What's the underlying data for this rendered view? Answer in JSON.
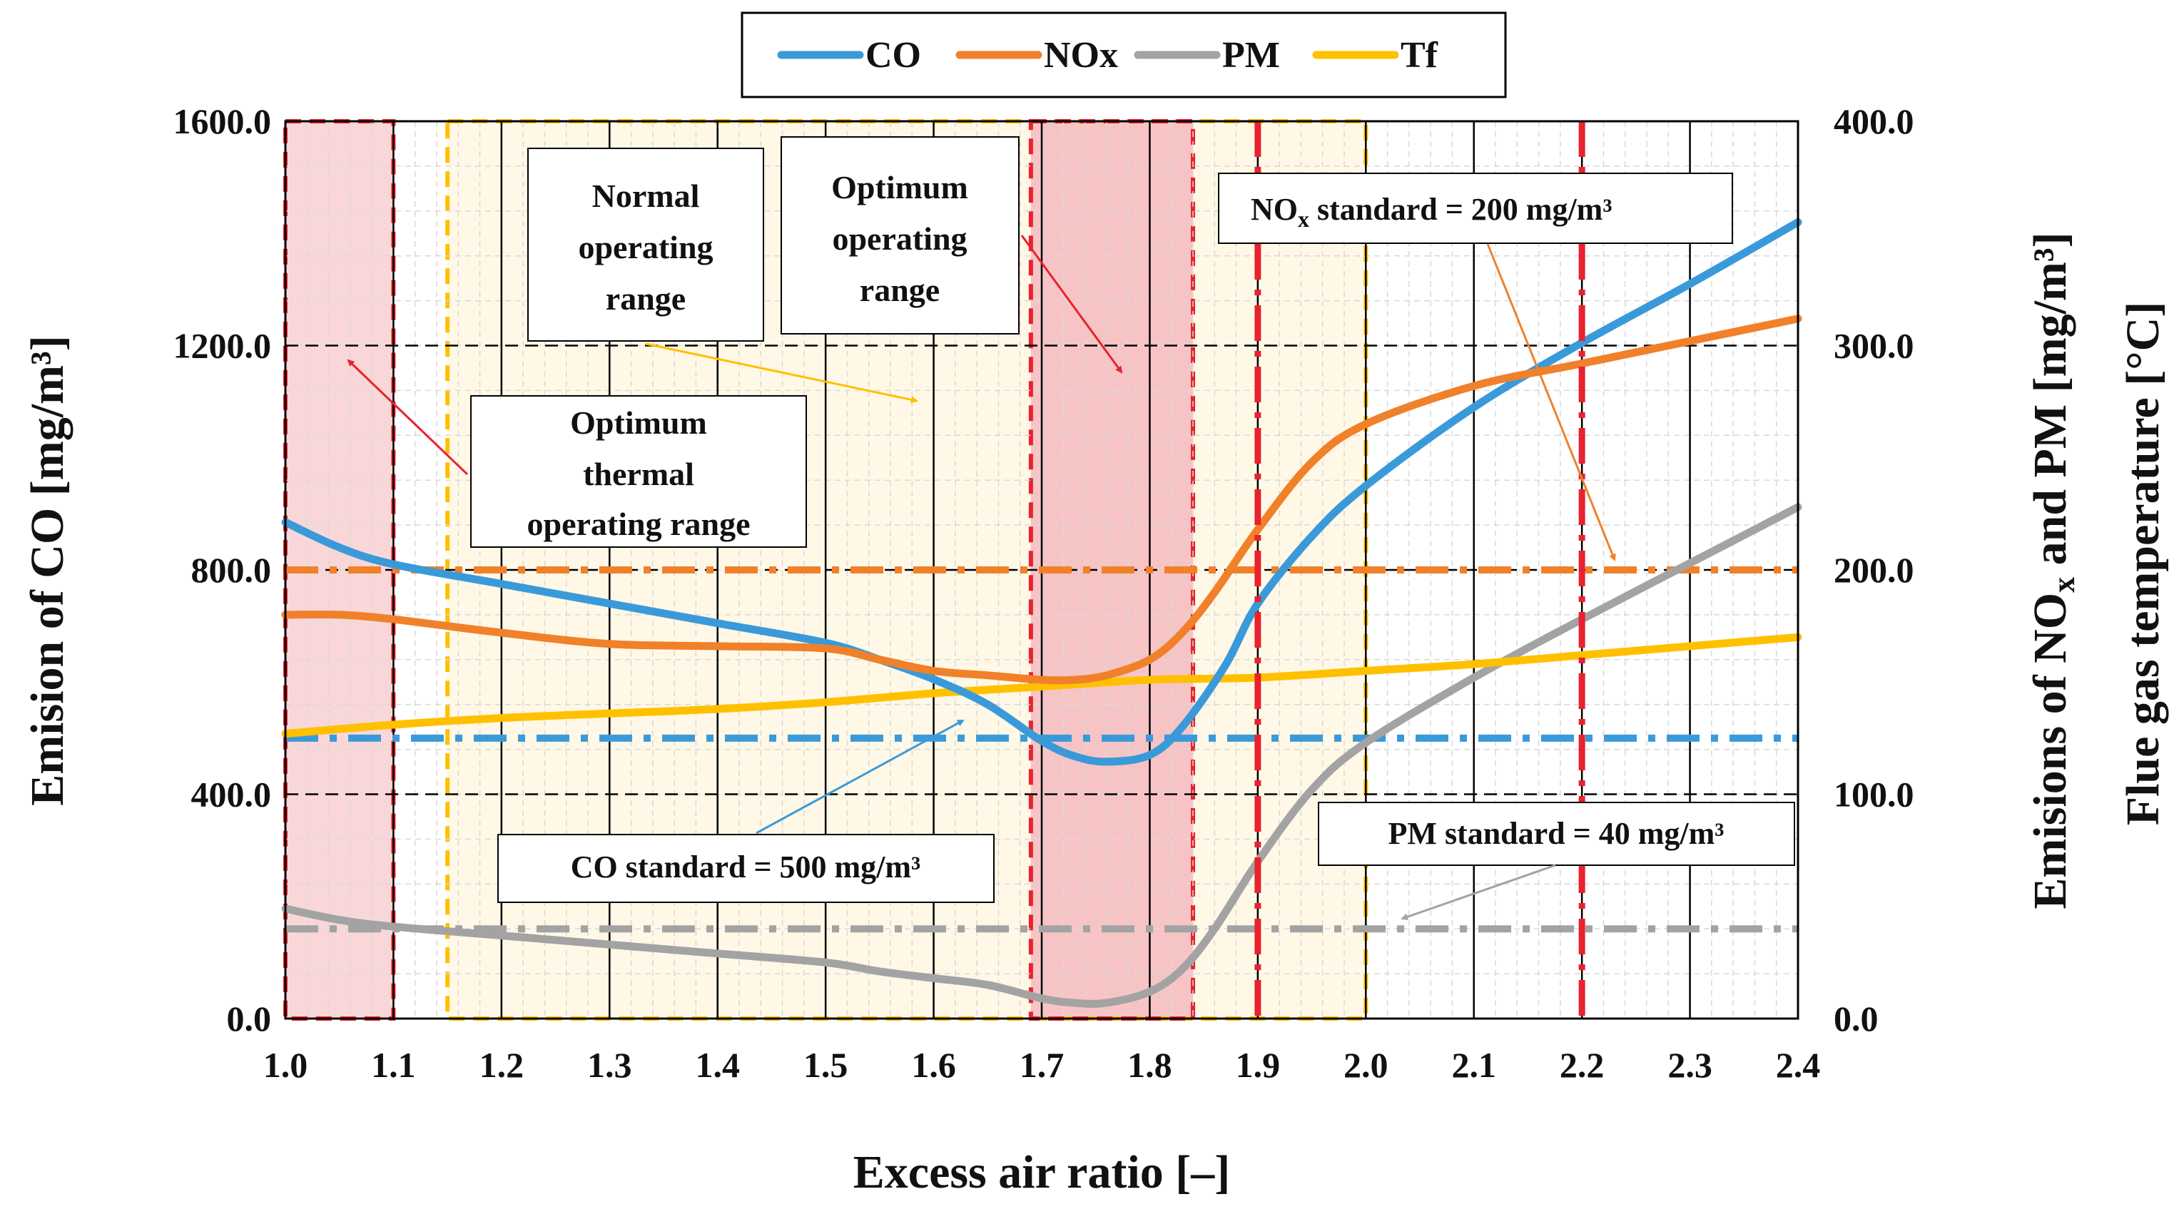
{
  "chart_data": {
    "type": "line",
    "x_axis": {
      "title": "Excess air ratio [–]",
      "min": 1.0,
      "max": 2.4,
      "ticks": [
        1.0,
        1.1,
        1.2,
        1.3,
        1.4,
        1.5,
        1.6,
        1.7,
        1.8,
        1.9,
        2.0,
        2.1,
        2.2,
        2.3,
        2.4
      ],
      "tick_labels": [
        "1.0",
        "1.1",
        "1.2",
        "1.3",
        "1.4",
        "1.5",
        "1.6",
        "1.7",
        "1.8",
        "1.9",
        "2.0",
        "2.1",
        "2.2",
        "2.3",
        "2.4"
      ]
    },
    "y_left": {
      "title": "Emision of CO [mg/m³]",
      "min": 0,
      "max": 1600,
      "ticks": [
        0,
        400,
        800,
        1200,
        1600
      ],
      "tick_labels": [
        "0.0",
        "400.0",
        "800.0",
        "1200.0",
        "1600.0"
      ]
    },
    "y_right": {
      "title_line1": "Emisions of NOₓ and PM [mg/m³]",
      "title_line2": "Flue gas temperature [°C]",
      "min": 0,
      "max": 400,
      "ticks": [
        0,
        100,
        200,
        300,
        400
      ],
      "tick_labels": [
        "0.0",
        "100.0",
        "200.0",
        "300.0",
        "400.0"
      ]
    },
    "series": [
      {
        "name": "CO",
        "axis": "left",
        "color": "#3a9ad9",
        "x": [
          1.0,
          1.05,
          1.1,
          1.2,
          1.3,
          1.4,
          1.5,
          1.55,
          1.6,
          1.65,
          1.7,
          1.73,
          1.76,
          1.8,
          1.83,
          1.87,
          1.9,
          1.95,
          2.0,
          2.1,
          2.2,
          2.3,
          2.4
        ],
        "y": [
          885,
          840,
          810,
          775,
          740,
          705,
          670,
          640,
          605,
          560,
          495,
          468,
          458,
          470,
          520,
          630,
          740,
          860,
          950,
          1090,
          1205,
          1310,
          1420
        ]
      },
      {
        "name": "NOx",
        "axis": "right",
        "color": "#f0812a",
        "x": [
          1.0,
          1.05,
          1.1,
          1.2,
          1.3,
          1.4,
          1.5,
          1.55,
          1.6,
          1.65,
          1.7,
          1.73,
          1.76,
          1.8,
          1.83,
          1.86,
          1.9,
          1.95,
          2.0,
          2.1,
          2.2,
          2.3,
          2.4
        ],
        "y": [
          180,
          180,
          178,
          172,
          167,
          166,
          165,
          160,
          155,
          153,
          151,
          151,
          153,
          160,
          172,
          190,
          218,
          248,
          265,
          282,
          292,
          302,
          312
        ]
      },
      {
        "name": "PM",
        "axis": "right",
        "color": "#a3a3a3",
        "x": [
          1.0,
          1.05,
          1.1,
          1.2,
          1.3,
          1.4,
          1.5,
          1.55,
          1.6,
          1.65,
          1.7,
          1.73,
          1.76,
          1.8,
          1.83,
          1.86,
          1.9,
          1.95,
          2.0,
          2.1,
          2.2,
          2.3,
          2.4
        ],
        "y": [
          49,
          44,
          41,
          37,
          33,
          29,
          25,
          21,
          18,
          15,
          9,
          7,
          7,
          12,
          22,
          40,
          70,
          102,
          123,
          152,
          178,
          203,
          228
        ]
      },
      {
        "name": "Tf",
        "axis": "right",
        "color": "#ffc000",
        "x": [
          1.0,
          1.1,
          1.2,
          1.3,
          1.4,
          1.5,
          1.6,
          1.7,
          1.8,
          1.9,
          2.0,
          2.1,
          2.2,
          2.3,
          2.4
        ],
        "y": [
          127,
          131,
          134,
          136,
          138,
          141,
          145,
          148,
          151,
          152,
          155,
          158,
          162,
          166,
          170
        ]
      }
    ],
    "standards": [
      {
        "name": "CO standard",
        "axis": "left",
        "value": 500,
        "color": "#3a9ad9",
        "label": "CO standard = 500 mg/m³"
      },
      {
        "name": "NOx standard",
        "axis": "right",
        "value": 200,
        "color": "#f0812a",
        "label_pre": "NO",
        "label_sub": "x",
        "label_post": " standard = 200 mg/m³"
      },
      {
        "name": "PM standard",
        "axis": "right",
        "value": 40,
        "color": "#a3a3a3",
        "label": "PM standard = 40 mg/m³"
      }
    ],
    "ranges": [
      {
        "name": "Optimum thermal operating range",
        "x_from": 1.0,
        "x_to": 1.1,
        "fill": "#f9d7d9",
        "border": "#e8222e"
      },
      {
        "name": "Normal operating range",
        "x_from": 1.15,
        "x_to": 2.0,
        "fill": "#fff8e6",
        "border": "#ffc000"
      },
      {
        "name": "Optimum operating range",
        "x_from": 1.69,
        "x_to": 1.84,
        "fill": "#f7c4c6",
        "border": "#e8222e"
      }
    ],
    "vertical_lines": [
      {
        "x": 1.9,
        "color": "#e8222e"
      },
      {
        "x": 2.2,
        "color": "#e8222e"
      }
    ],
    "annotations": {
      "normal_range": [
        "Normal",
        "operating",
        "range"
      ],
      "optimum_range": [
        "Optimum",
        "operating",
        "range"
      ],
      "thermal_range": [
        "Optimum",
        "thermal",
        "operating range"
      ]
    },
    "legend": {
      "position": "top-center",
      "entries": [
        "CO",
        "NOx",
        "PM",
        "Tf"
      ]
    },
    "grid": true
  }
}
